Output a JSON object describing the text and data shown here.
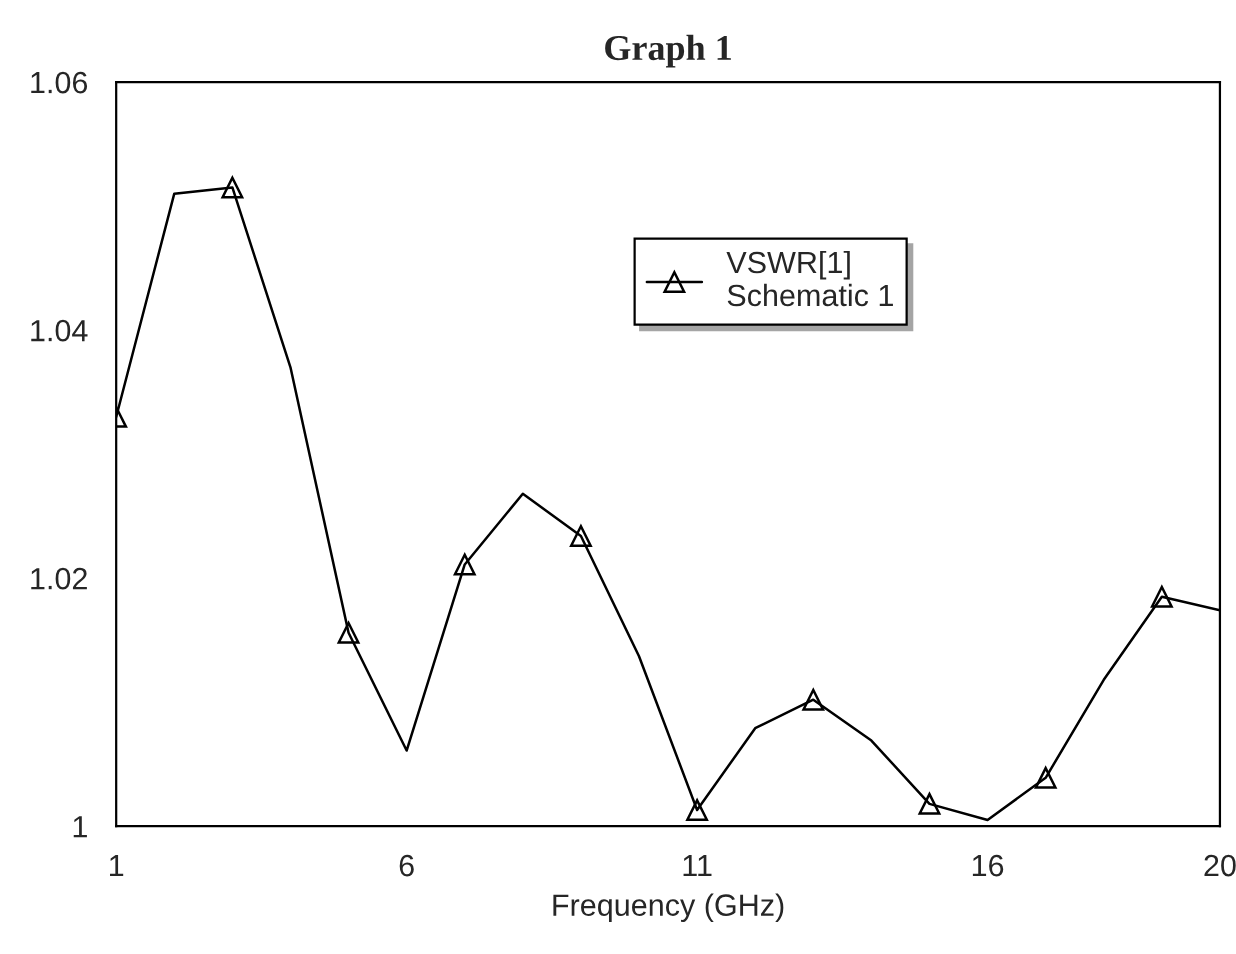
{
  "chart_data": {
    "type": "line",
    "title": "Graph 1",
    "xlabel": "Frequency (GHz)",
    "x": [
      1,
      2,
      3,
      4,
      5,
      6,
      7,
      8,
      9,
      10,
      11,
      12,
      13,
      14,
      15,
      16,
      17,
      18,
      19,
      20
    ],
    "series": [
      {
        "name": "VSWR[1]\nSchematic 1",
        "color": "#000000",
        "values": [
          1.033,
          1.051,
          1.0515,
          1.037,
          1.0156,
          1.0061,
          1.0211,
          1.0268,
          1.0234,
          1.0137,
          1.0013,
          1.0079,
          1.0102,
          1.0069,
          1.0018,
          1.0005,
          1.0039,
          1.0118,
          1.0185,
          1.0174
        ]
      }
    ],
    "xlim": [
      1,
      20
    ],
    "xticks": [
      1,
      6,
      11,
      16,
      20
    ],
    "ylim": [
      1,
      1.06
    ],
    "yticks": [
      1,
      1.02,
      1.04,
      1.06
    ],
    "marker": "triangle",
    "line_style": "solid",
    "grid": false,
    "legend": "top right"
  }
}
